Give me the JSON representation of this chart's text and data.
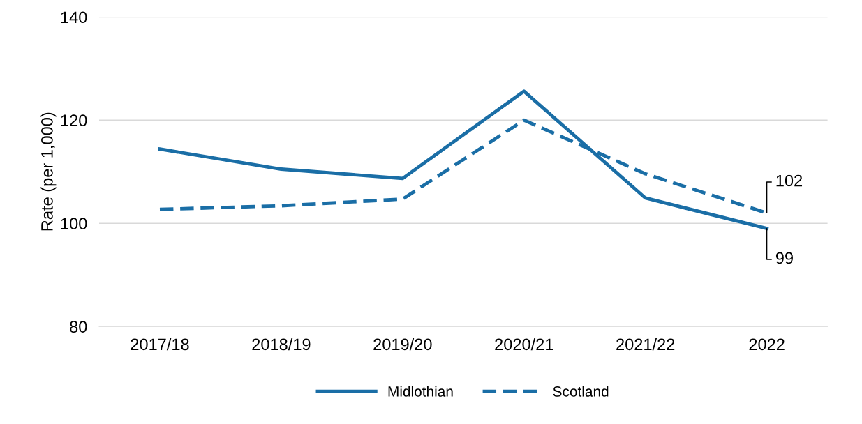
{
  "chart_data": {
    "type": "line",
    "ylabel": "Rate (per 1,000)",
    "categories": [
      "2017/18",
      "2018/19",
      "2019/20",
      "2020/21",
      "2021/22",
      "2022"
    ],
    "series": [
      {
        "name": "Midlothian",
        "color": "#1a6ea6",
        "line_style": "solid",
        "values": [
          114.4,
          110.5,
          108.7,
          125.6,
          104.9,
          99
        ],
        "value_labels": [
          null,
          null,
          null,
          null,
          null,
          "99"
        ]
      },
      {
        "name": "Scotland",
        "color": "#1a6ea6",
        "line_style": "dashed",
        "values": [
          102.7,
          103.4,
          104.7,
          120,
          109.6,
          102
        ],
        "value_labels": [
          null,
          null,
          null,
          null,
          null,
          "102"
        ]
      }
    ],
    "ylim": [
      80,
      140
    ],
    "yticks": [
      80,
      100,
      120,
      140
    ],
    "grid": "y",
    "legend": "bottom",
    "marker": "none"
  }
}
